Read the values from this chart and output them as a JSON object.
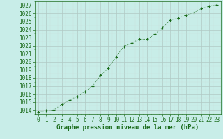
{
  "x": [
    0,
    1,
    2,
    3,
    4,
    5,
    6,
    7,
    8,
    9,
    10,
    11,
    12,
    13,
    14,
    15,
    16,
    17,
    18,
    19,
    20,
    21,
    22,
    23
  ],
  "y": [
    1013.8,
    1013.9,
    1014.0,
    1014.7,
    1015.2,
    1015.7,
    1016.3,
    1017.0,
    1018.3,
    1019.2,
    1020.6,
    1021.9,
    1022.3,
    1022.8,
    1022.8,
    1023.4,
    1024.2,
    1025.2,
    1025.4,
    1025.8,
    1026.1,
    1026.6,
    1026.9,
    1027.1
  ],
  "line_color": "#1a6b1a",
  "marker": "+",
  "marker_size": 3,
  "marker_linewidth": 0.8,
  "line_width": 0.6,
  "bg_color": "#c8ede8",
  "grid_major_color": "#b0c8c4",
  "grid_minor_color": "#c8e0dc",
  "xlabel": "Graphe pression niveau de la mer (hPa)",
  "xlabel_color": "#1a6b1a",
  "xlabel_fontsize": 6.5,
  "tick_color": "#1a6b1a",
  "tick_fontsize": 5.5,
  "ylim": [
    1013.5,
    1027.5
  ],
  "xlim": [
    -0.5,
    23.5
  ],
  "yticks": [
    1014,
    1015,
    1016,
    1017,
    1018,
    1019,
    1020,
    1021,
    1022,
    1023,
    1024,
    1025,
    1026,
    1027
  ],
  "xticks": [
    0,
    1,
    2,
    3,
    4,
    5,
    6,
    7,
    8,
    9,
    10,
    11,
    12,
    13,
    14,
    15,
    16,
    17,
    18,
    19,
    20,
    21,
    22,
    23
  ]
}
